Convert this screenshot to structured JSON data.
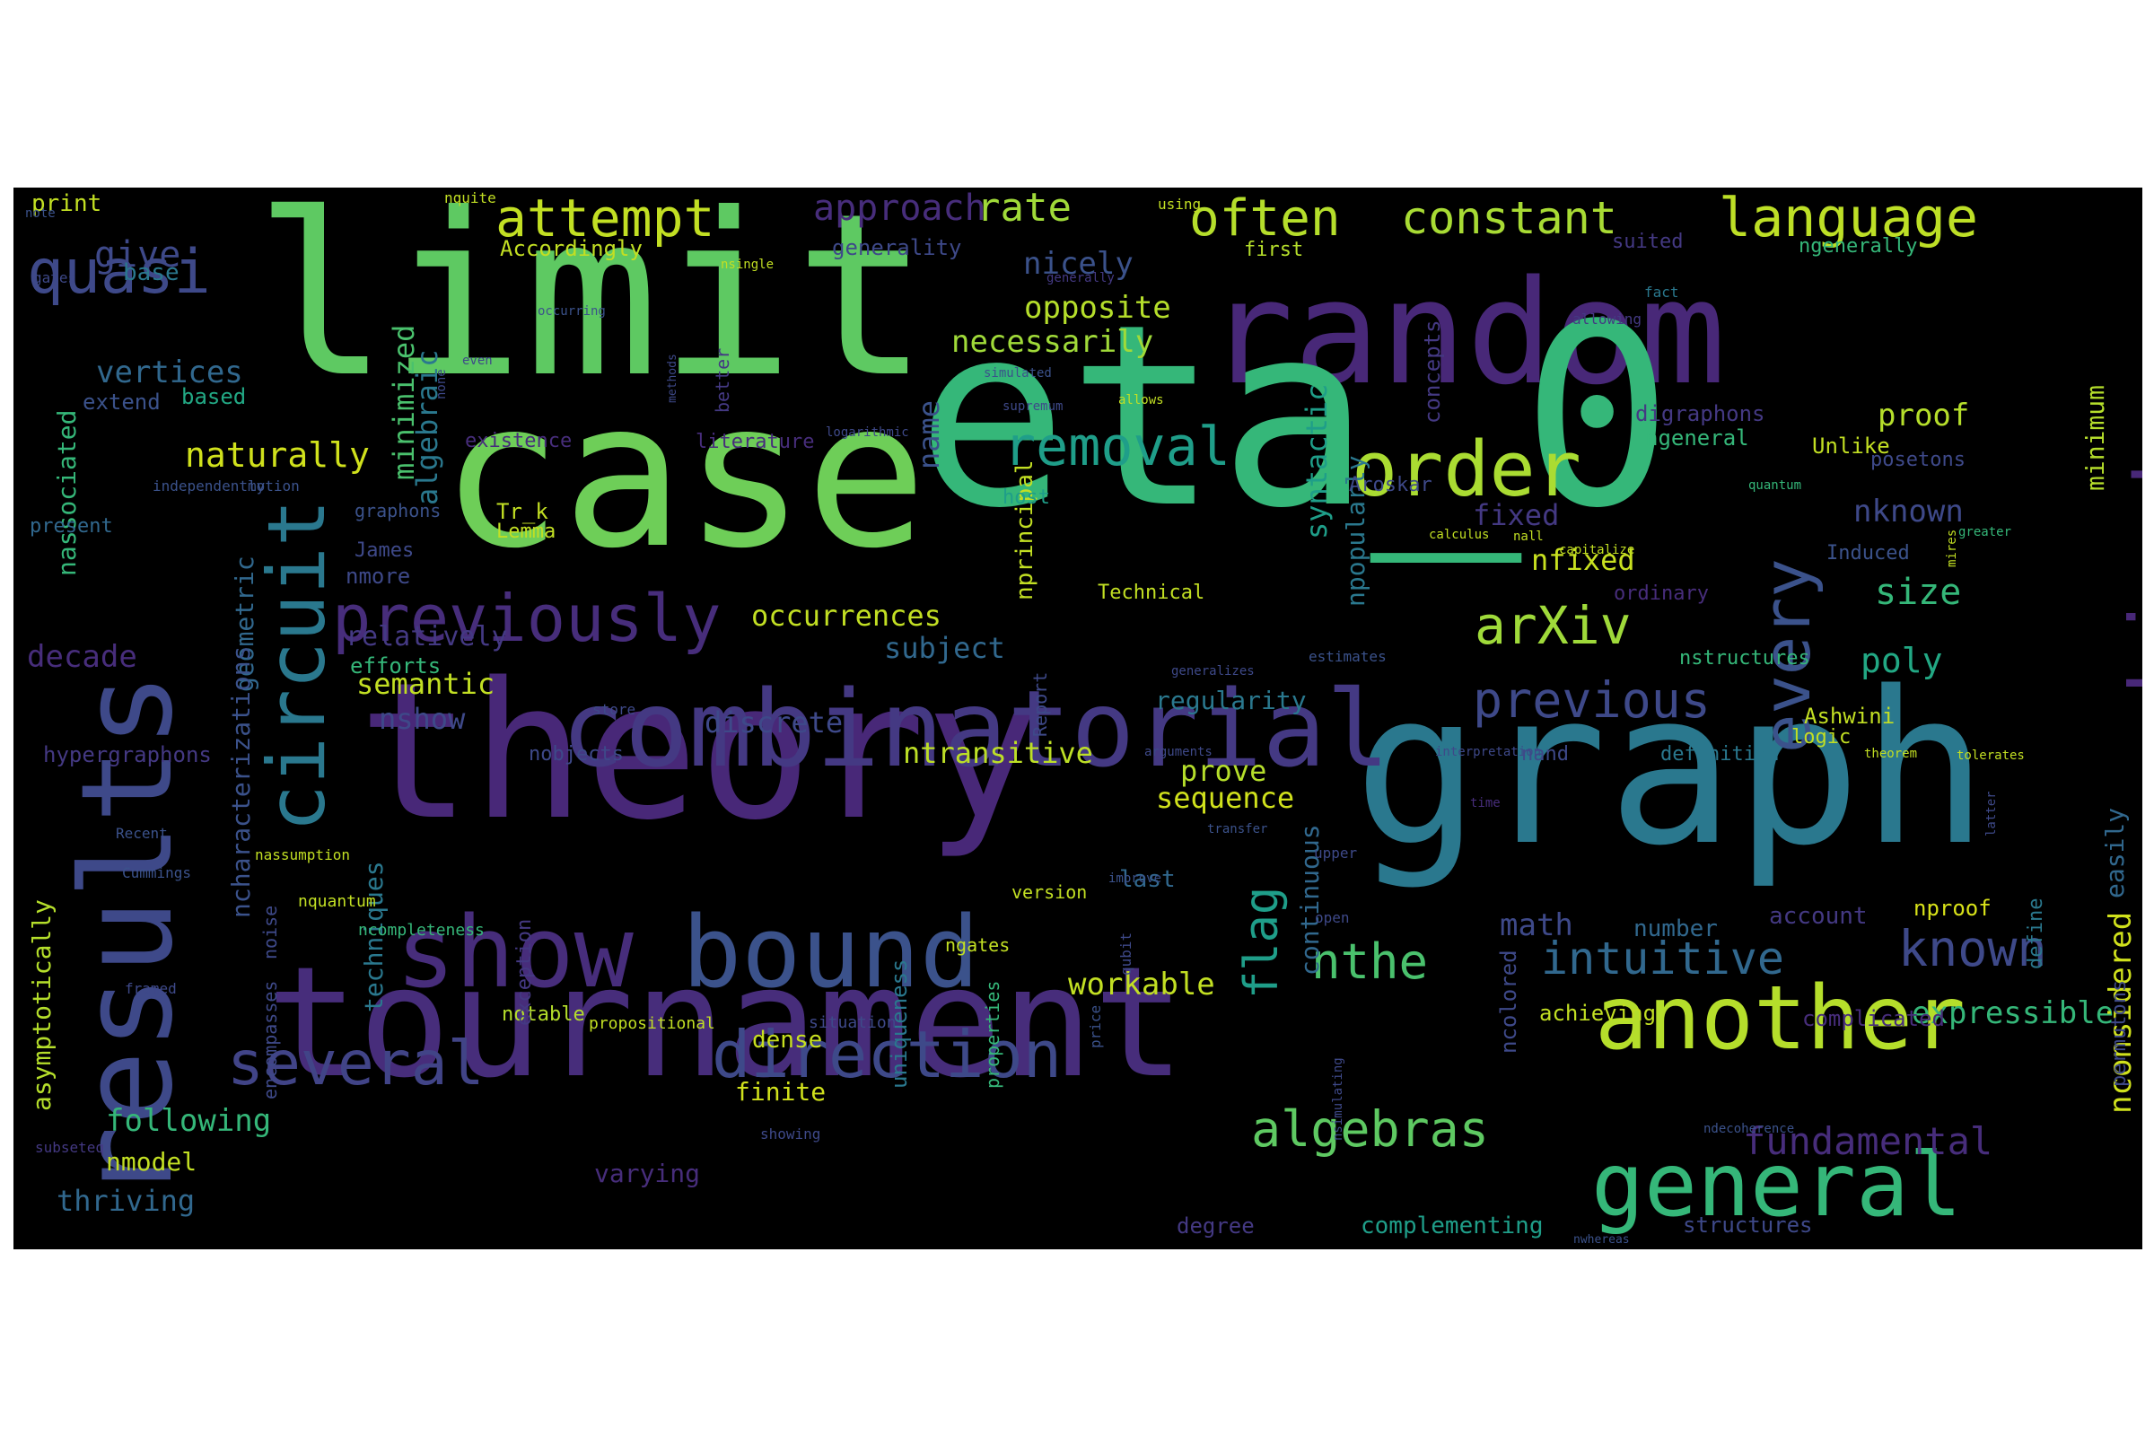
{
  "palette": {
    "page_background": "#ffffff",
    "cloud_background": "#000000",
    "viridis": [
      "#440154",
      "#482878",
      "#3e4989",
      "#31688e",
      "#26828e",
      "#1f9e89",
      "#35b779",
      "#6ece58",
      "#b5de2b",
      "#fde725"
    ]
  },
  "words": [
    {
      "text": "limit",
      "color": "#5ec962"
    },
    {
      "text": "random",
      "color": "#482878"
    },
    {
      "text": "case",
      "color": "#6ece58"
    },
    {
      "text": "eta_0",
      "color": "#35b779"
    },
    {
      "text": "theory",
      "color": "#482878"
    },
    {
      "text": "graph",
      "color": "#2a788e"
    },
    {
      "text": "tournament",
      "color": "#472d7b"
    },
    {
      "text": "results",
      "color": "#3e4989"
    },
    {
      "text": "combinatorial",
      "color": "#443983"
    },
    {
      "text": "show",
      "color": "#472d7b"
    },
    {
      "text": "bound",
      "color": "#3b528b"
    },
    {
      "text": "another",
      "color": "#b5de2b"
    },
    {
      "text": "general",
      "color": "#35b779"
    },
    {
      "text": "objects",
      "color": "#482878"
    },
    {
      "text": "every",
      "color": "#3b528b"
    },
    {
      "text": "circuit",
      "color": "#2a788e"
    },
    {
      "text": "order",
      "color": "#aadc32"
    },
    {
      "text": "previously",
      "color": "#472d7b"
    },
    {
      "text": "several",
      "color": "#414487"
    },
    {
      "text": "direction",
      "color": "#3e4989"
    },
    {
      "text": "language",
      "color": "#bddf26"
    },
    {
      "text": "attempt",
      "color": "#c2df23"
    },
    {
      "text": "often",
      "color": "#b5de2b"
    },
    {
      "text": "constant",
      "color": "#a8db34"
    },
    {
      "text": "quasi",
      "color": "#3e4989"
    },
    {
      "text": "removal",
      "color": "#1f9e89"
    },
    {
      "text": "arXiv",
      "color": "#9fda3a"
    },
    {
      "text": "previous",
      "color": "#3e4989"
    },
    {
      "text": "intuitive",
      "color": "#31688e"
    },
    {
      "text": "known",
      "color": "#3e4989"
    },
    {
      "text": "algebras",
      "color": "#5ec962"
    },
    {
      "text": "fundamental",
      "color": "#472d7b"
    },
    {
      "text": "nthe",
      "color": "#4ac16d"
    },
    {
      "text": "flag",
      "color": "#1f9e89"
    },
    {
      "text": "naturally",
      "color": "#d0e11c"
    },
    {
      "text": "rate",
      "color": "#a0da39"
    },
    {
      "text": "approach",
      "color": "#472d7b"
    },
    {
      "text": "give",
      "color": "#3e4989"
    },
    {
      "text": "vertices",
      "color": "#31688e"
    },
    {
      "text": "opposite",
      "color": "#b5de2b"
    },
    {
      "text": "necessarily",
      "color": "#a0da39"
    },
    {
      "text": "nicely",
      "color": "#3b528b"
    },
    {
      "text": "name",
      "color": "#3b528b"
    },
    {
      "text": "syntactic",
      "color": "#1f9e89"
    },
    {
      "text": "minimized",
      "color": "#4ac16d"
    },
    {
      "text": "algebraic",
      "color": "#2a788e"
    },
    {
      "text": "proof",
      "color": "#b5de2b"
    },
    {
      "text": "size",
      "color": "#35b779"
    },
    {
      "text": "poly",
      "color": "#22a884"
    },
    {
      "text": "nknown",
      "color": "#3e4989"
    },
    {
      "text": "nfixed",
      "color": "#c8e020"
    },
    {
      "text": "fixed",
      "color": "#443983"
    },
    {
      "text": "occurrences",
      "color": "#c2df23"
    },
    {
      "text": "subject",
      "color": "#31688e"
    },
    {
      "text": "discrete",
      "color": "#3e4989"
    },
    {
      "text": "ntransitive",
      "color": "#bddf26"
    },
    {
      "text": "prove",
      "color": "#b5de2b"
    },
    {
      "text": "sequence",
      "color": "#d0e11c"
    },
    {
      "text": "relatively",
      "color": "#443983"
    },
    {
      "text": "semantic",
      "color": "#c2df23"
    },
    {
      "text": "nshow",
      "color": "#3e4989"
    },
    {
      "text": "decade",
      "color": "#472d7b"
    },
    {
      "text": "geometric",
      "color": "#31688e"
    },
    {
      "text": "ncharacterizations",
      "color": "#3b528b"
    },
    {
      "text": "techniques",
      "color": "#2a788e"
    },
    {
      "text": "asymptotically",
      "color": "#b5de2b"
    },
    {
      "text": "following",
      "color": "#35b779"
    },
    {
      "text": "thriving",
      "color": "#31688e"
    },
    {
      "text": "nmodel",
      "color": "#c2df23"
    },
    {
      "text": "varying",
      "color": "#472d7b"
    },
    {
      "text": "finite",
      "color": "#d0e11c"
    },
    {
      "text": "dense",
      "color": "#c8e020"
    },
    {
      "text": "notable",
      "color": "#b5de2b"
    },
    {
      "text": "workable",
      "color": "#c2df23"
    },
    {
      "text": "last",
      "color": "#31688e"
    },
    {
      "text": "math",
      "color": "#3e4989"
    },
    {
      "text": "number",
      "color": "#31688e"
    },
    {
      "text": "account",
      "color": "#443983"
    },
    {
      "text": "nproof",
      "color": "#d8e219"
    },
    {
      "text": "expressible",
      "color": "#35b779"
    },
    {
      "text": "achieving",
      "color": "#c2df23"
    },
    {
      "text": "complicated",
      "color": "#472d7b"
    },
    {
      "text": "nconsidered",
      "color": "#d0e11c"
    },
    {
      "text": "easily",
      "color": "#31688e"
    },
    {
      "text": "minimum",
      "color": "#b5de2b"
    },
    {
      "text": "complementing",
      "color": "#1f9e89"
    },
    {
      "text": "structures",
      "color": "#3e4989"
    },
    {
      "text": "degree",
      "color": "#443983"
    },
    {
      "text": "ncolored",
      "color": "#3e4989"
    },
    {
      "text": "continuous",
      "color": "#31688e"
    },
    {
      "text": "npopularly",
      "color": "#2a788e"
    },
    {
      "text": "nassociated",
      "color": "#35b779"
    },
    {
      "text": "present",
      "color": "#31688e"
    },
    {
      "text": "extend",
      "color": "#3b528b"
    },
    {
      "text": "based",
      "color": "#22a884"
    },
    {
      "text": "base",
      "color": "#2a788e"
    },
    {
      "text": "print",
      "color": "#c2df23"
    },
    {
      "text": "Accordingly",
      "color": "#c2df23"
    },
    {
      "text": "generality",
      "color": "#3e4989"
    },
    {
      "text": "first",
      "color": "#b5de2b"
    },
    {
      "text": "suited",
      "color": "#443983"
    },
    {
      "text": "ngenerally",
      "color": "#35b779"
    },
    {
      "text": "concepts",
      "color": "#443983"
    },
    {
      "text": "digraphons",
      "color": "#443983"
    },
    {
      "text": "Unlike",
      "color": "#c2df23"
    },
    {
      "text": "posetons",
      "color": "#3e4989"
    },
    {
      "text": "ngeneral",
      "color": "#35b779"
    },
    {
      "text": "Aroskar",
      "color": "#3e4989"
    },
    {
      "text": "Induced",
      "color": "#3b528b"
    },
    {
      "text": "ordinary",
      "color": "#472d7b"
    },
    {
      "text": "nstructures",
      "color": "#35b779"
    },
    {
      "text": "Ashwini",
      "color": "#c2df23"
    },
    {
      "text": "logic",
      "color": "#c2df23"
    },
    {
      "text": "nand",
      "color": "#3e4989"
    },
    {
      "text": "definition",
      "color": "#2a788e"
    },
    {
      "text": "define",
      "color": "#2a788e"
    },
    {
      "text": "permutons",
      "color": "#3e4989"
    },
    {
      "text": "regularity",
      "color": "#2a788e"
    },
    {
      "text": "Tr_k",
      "color": "#c2df23"
    },
    {
      "text": "Lemma",
      "color": "#c2df23"
    },
    {
      "text": "James",
      "color": "#3e4989"
    },
    {
      "text": "nmore",
      "color": "#3e4989"
    },
    {
      "text": "efforts",
      "color": "#35b779"
    },
    {
      "text": "graphons",
      "color": "#3b528b"
    },
    {
      "text": "nprincipal",
      "color": "#c2df23"
    },
    {
      "text": "host",
      "color": "#1f9e89"
    },
    {
      "text": "Technical",
      "color": "#c2df23"
    },
    {
      "text": "Report",
      "color": "#3e4989"
    },
    {
      "text": "existence",
      "color": "#472d7b"
    },
    {
      "text": "literature",
      "color": "#472d7b"
    },
    {
      "text": "better",
      "color": "#443983"
    },
    {
      "text": "nobjects",
      "color": "#3e4989"
    },
    {
      "text": "exception",
      "color": "#443983"
    },
    {
      "text": "uniqueness",
      "color": "#2a788e"
    },
    {
      "text": "properties",
      "color": "#35b779"
    },
    {
      "text": "version",
      "color": "#c2df23"
    },
    {
      "text": "ngates",
      "color": "#c2df23"
    },
    {
      "text": "situation",
      "color": "#3e4989"
    },
    {
      "text": "propositional",
      "color": "#c2df23"
    },
    {
      "text": "ncompleteness",
      "color": "#35b779"
    },
    {
      "text": "nquantum",
      "color": "#c2df23"
    },
    {
      "text": "noise",
      "color": "#3e4989"
    },
    {
      "text": "encompasses",
      "color": "#3e4989"
    },
    {
      "text": "hypergraphons",
      "color": "#443983"
    },
    {
      "text": "Cummings",
      "color": "#3b528b"
    },
    {
      "text": "nassumption",
      "color": "#c2df23"
    },
    {
      "text": "Recent",
      "color": "#3b528b"
    },
    {
      "text": "framed",
      "color": "#3e4989"
    },
    {
      "text": "subseteq",
      "color": "#443983"
    },
    {
      "text": "note",
      "color": "#3b528b"
    },
    {
      "text": "gates",
      "color": "#3e4989"
    },
    {
      "text": "nquite",
      "color": "#c2df23"
    },
    {
      "text": "using",
      "color": "#c2df23"
    },
    {
      "text": "nsingle",
      "color": "#c2df23"
    },
    {
      "text": "generally",
      "color": "#443983"
    },
    {
      "text": "simulated",
      "color": "#3b528b"
    },
    {
      "text": "supremum",
      "color": "#3e4989"
    },
    {
      "text": "allows",
      "color": "#c2df23"
    },
    {
      "text": "logarithmic",
      "color": "#3e4989"
    },
    {
      "text": "occurring",
      "color": "#3b528b"
    },
    {
      "text": "even",
      "color": "#3e4989"
    },
    {
      "text": "none",
      "color": "#3e4989"
    },
    {
      "text": "methods",
      "color": "#3e4989"
    },
    {
      "text": "allowing",
      "color": "#443983"
    },
    {
      "text": "fact",
      "color": "#2a788e"
    },
    {
      "text": "quantum",
      "color": "#35b779"
    },
    {
      "text": "calculus",
      "color": "#c2df23"
    },
    {
      "text": "nall",
      "color": "#c2df23"
    },
    {
      "text": "capitalize",
      "color": "#c2df23"
    },
    {
      "text": "greater",
      "color": "#35b779"
    },
    {
      "text": "mires",
      "color": "#c2df23"
    },
    {
      "text": "generalizes",
      "color": "#3e4989"
    },
    {
      "text": "estimates",
      "color": "#3b528b"
    },
    {
      "text": "store",
      "color": "#3e4989"
    },
    {
      "text": "independently",
      "color": "#3b528b"
    },
    {
      "text": "motion",
      "color": "#3b528b"
    },
    {
      "text": "interpretation",
      "color": "#3e4989"
    },
    {
      "text": "arguments",
      "color": "#3e4989"
    },
    {
      "text": "theorem",
      "color": "#c2df23"
    },
    {
      "text": "tolerates",
      "color": "#c2df23"
    },
    {
      "text": "time",
      "color": "#472d7b"
    },
    {
      "text": "transfer",
      "color": "#3b528b"
    },
    {
      "text": "upper",
      "color": "#3e4989"
    },
    {
      "text": "improve",
      "color": "#3b528b"
    },
    {
      "text": "open",
      "color": "#3e4989"
    },
    {
      "text": "price",
      "color": "#3b528b"
    },
    {
      "text": "qubit",
      "color": "#3e4989"
    },
    {
      "text": "nsimulating",
      "color": "#3e4989"
    },
    {
      "text": "ndecoherence",
      "color": "#3b528b"
    },
    {
      "text": "nwhereas",
      "color": "#3b528b"
    },
    {
      "text": "latter",
      "color": "#3e4989"
    },
    {
      "text": "showing",
      "color": "#3e4989"
    }
  ]
}
